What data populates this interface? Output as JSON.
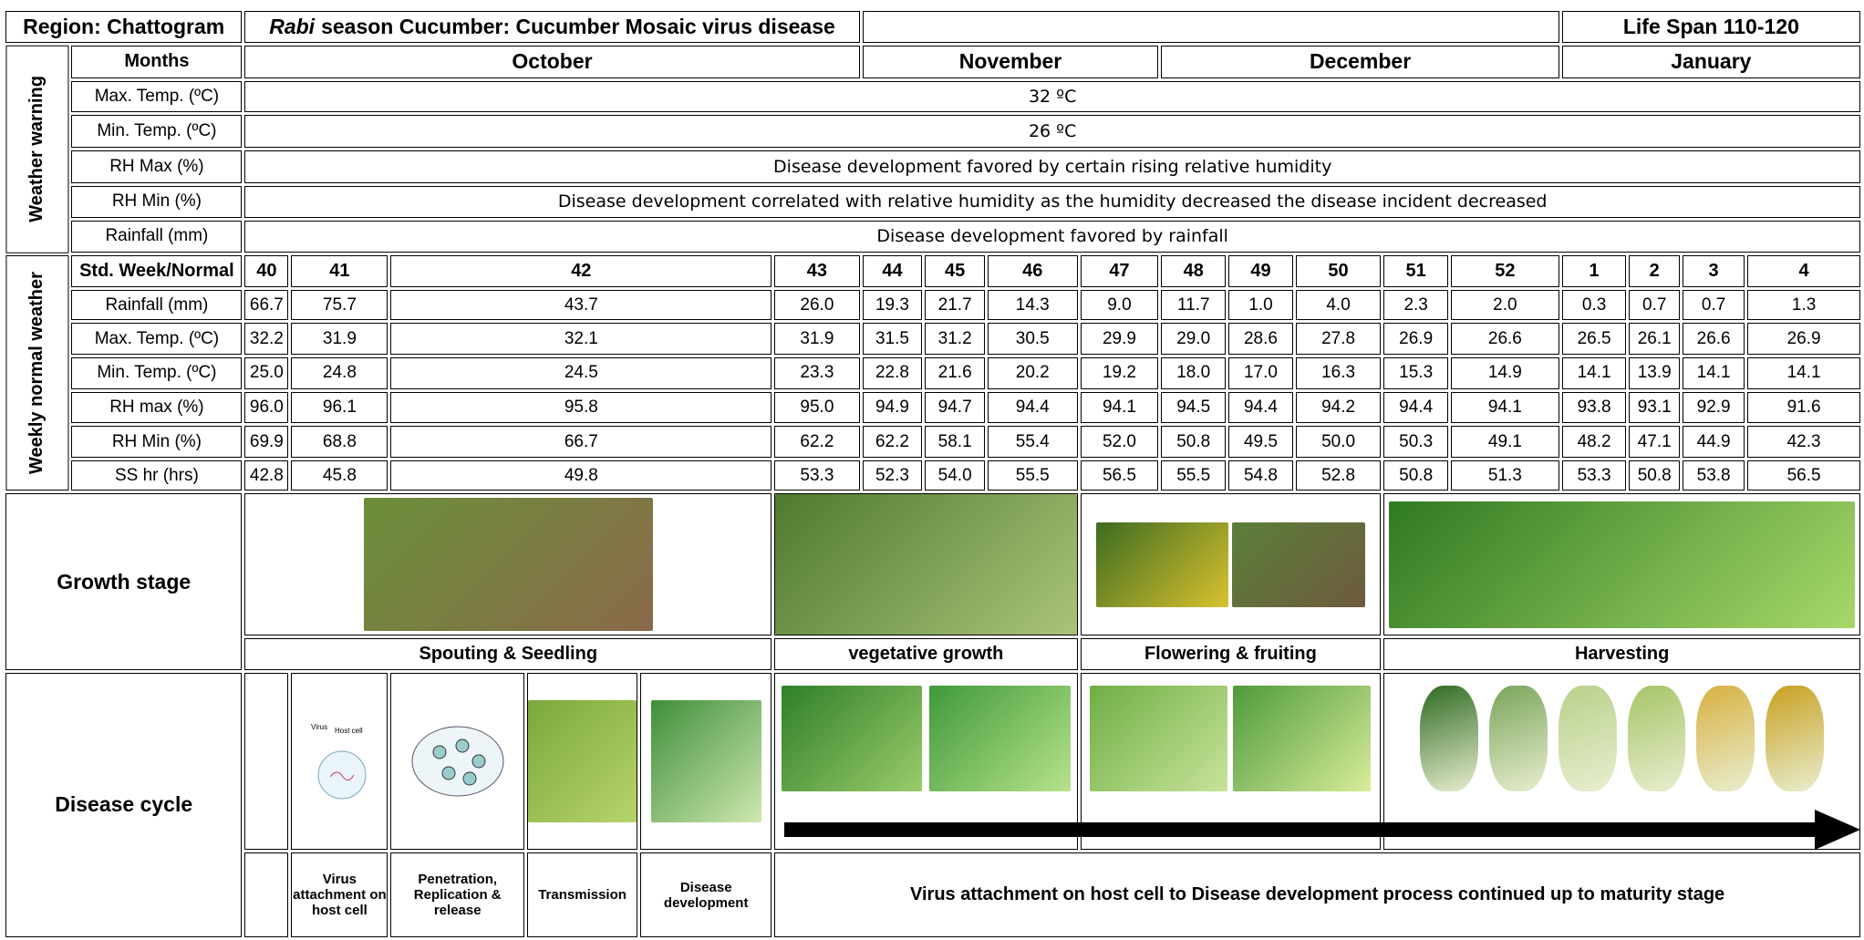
{
  "header": {
    "region": "Region: Chattogram",
    "title_italic": "Rabi",
    "title_rest": "season Cucumber: Cucumber Mosaic virus disease",
    "life_span": "Life Span 110-120"
  },
  "months": {
    "label": "Months",
    "names": [
      "October",
      "November",
      "December",
      "January"
    ]
  },
  "weather_warning": {
    "label": "Weather warning",
    "rows": [
      {
        "label": "Max. Temp. (ºC)",
        "text": "32 ºC"
      },
      {
        "label": "Min. Temp. (ºC)",
        "text": "26 ºC"
      },
      {
        "label": "RH Max (%)",
        "text": "Disease development favored by certain rising relative humidity"
      },
      {
        "label": "RH Min (%)",
        "text": "Disease development correlated with relative humidity as the humidity decreased the disease incident decreased"
      },
      {
        "label": "Rainfall (mm)",
        "text": "Disease development favored by rainfall"
      }
    ]
  },
  "weekly": {
    "label": "Weekly normal weather",
    "header": "Std. Week/Normal",
    "weeks": [
      40,
      41,
      42,
      43,
      44,
      45,
      46,
      47,
      48,
      49,
      50,
      51,
      52,
      1,
      2,
      3,
      4
    ],
    "rows": [
      {
        "label": "Rainfall (mm)",
        "values": [
          "66.7",
          "75.7",
          "43.7",
          "26.0",
          "19.3",
          "21.7",
          "14.3",
          "9.0",
          "11.7",
          "1.0",
          "4.0",
          "2.3",
          "2.0",
          "0.3",
          "0.7",
          "0.7",
          "1.3"
        ]
      },
      {
        "label": "Max. Temp. (ºC)",
        "values": [
          "32.2",
          "31.9",
          "32.1",
          "31.9",
          "31.5",
          "31.2",
          "30.5",
          "29.9",
          "29.0",
          "28.6",
          "27.8",
          "26.9",
          "26.6",
          "26.5",
          "26.1",
          "26.6",
          "26.9"
        ]
      },
      {
        "label": "Min. Temp. (ºC)",
        "values": [
          "25.0",
          "24.8",
          "24.5",
          "23.3",
          "22.8",
          "21.6",
          "20.2",
          "19.2",
          "18.0",
          "17.0",
          "16.3",
          "15.3",
          "14.9",
          "14.1",
          "13.9",
          "14.1",
          "14.1"
        ]
      },
      {
        "label": "RH max (%)",
        "values": [
          "96.0",
          "96.1",
          "95.8",
          "95.0",
          "94.9",
          "94.7",
          "94.4",
          "94.1",
          "94.5",
          "94.4",
          "94.2",
          "94.4",
          "94.1",
          "93.8",
          "93.1",
          "92.9",
          "91.6"
        ]
      },
      {
        "label": "RH Min (%)",
        "values": [
          "69.9",
          "68.8",
          "66.7",
          "62.2",
          "62.2",
          "58.1",
          "55.4",
          "52.0",
          "50.8",
          "49.5",
          "50.0",
          "50.3",
          "49.1",
          "48.2",
          "47.1",
          "44.9",
          "42.3"
        ]
      },
      {
        "label": "SS hr (hrs)",
        "values": [
          "42.8",
          "45.8",
          "49.8",
          "53.3",
          "52.3",
          "54.0",
          "55.5",
          "56.5",
          "55.5",
          "54.8",
          "52.8",
          "50.8",
          "51.3",
          "53.3",
          "50.8",
          "53.8",
          "56.5"
        ]
      }
    ]
  },
  "growth": {
    "label": "Growth stage",
    "stages": [
      "Spouting & Seedling",
      "vegetative growth",
      "Flowering & fruiting",
      "Harvesting"
    ]
  },
  "disease": {
    "label": "Disease cycle",
    "steps": [
      "Virus attachment on host cell",
      "Penetration, Replication & release",
      "Transmission",
      "Disease development"
    ],
    "summary": "Virus attachment on host cell to Disease development process continued up to maturity stage"
  }
}
